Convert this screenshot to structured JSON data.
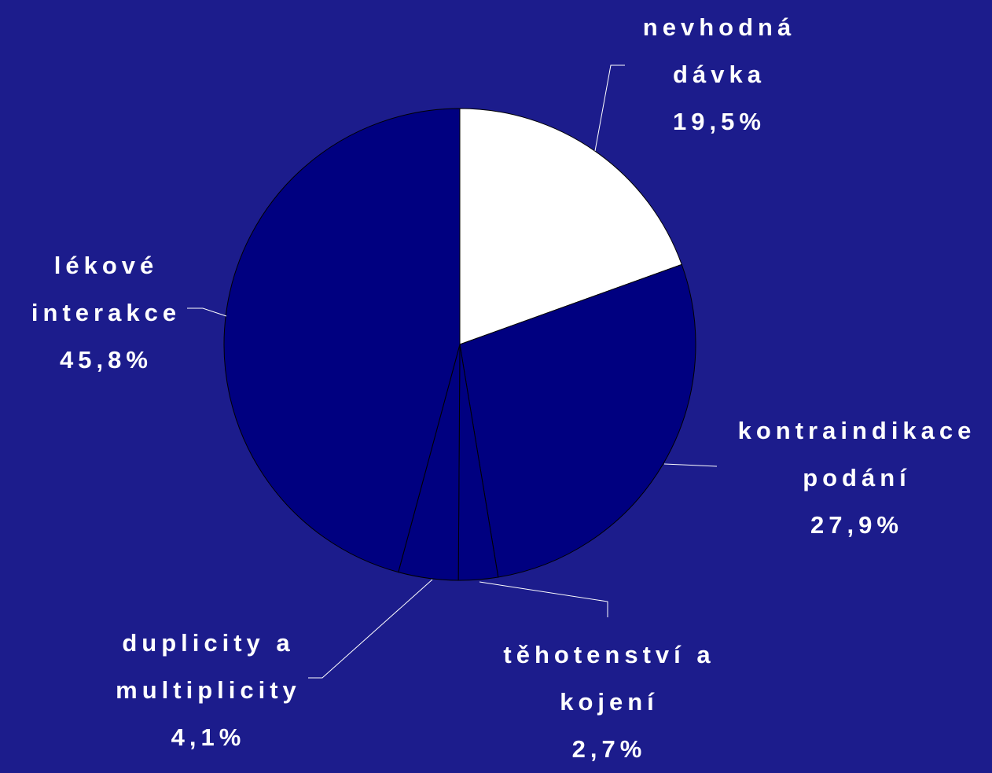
{
  "chart_data": {
    "type": "pie",
    "categories": [
      "nevhodná dávka",
      "kontraindikace podání",
      "těhotenství a kojení",
      "duplicity a multiplicity",
      "lékové interakce"
    ],
    "values": [
      19.5,
      27.9,
      2.7,
      4.1,
      45.8
    ],
    "value_labels": [
      "19,5%",
      "27,9%",
      "2,7%",
      "4,1%",
      "45,8%"
    ],
    "colors": [
      "#ffffff",
      "#000080",
      "#000080",
      "#000080",
      "#000080"
    ]
  }
}
